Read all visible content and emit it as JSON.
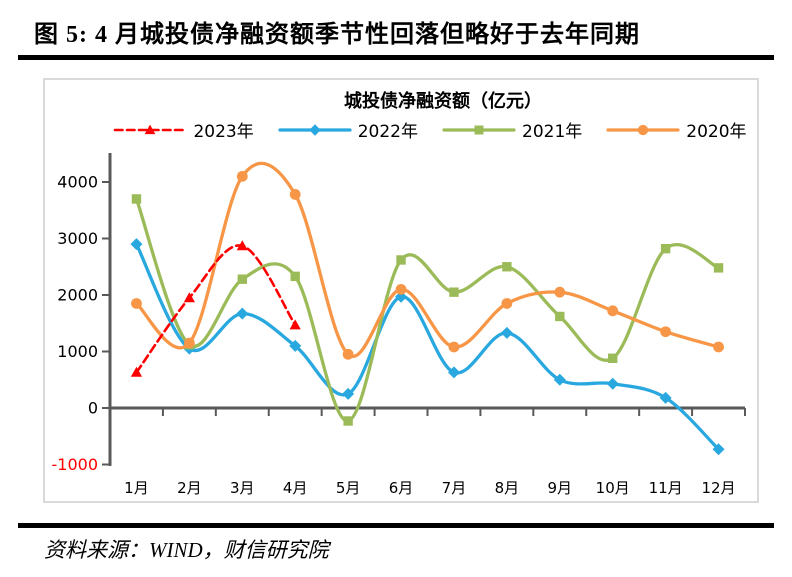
{
  "figure": {
    "header": "图 5: 4 月城投债净融资额季节性回落但略好于去年同期",
    "source": "资料来源：WIND，财信研究院"
  },
  "chart_data": {
    "type": "line",
    "title": "城投债净融资额（亿元）",
    "categories": [
      "1月",
      "2月",
      "3月",
      "4月",
      "5月",
      "6月",
      "7月",
      "8月",
      "9月",
      "10月",
      "11月",
      "12月"
    ],
    "series": [
      {
        "name": "2023年",
        "color": "#FF0000",
        "marker": "triangle",
        "line_style": "dashed",
        "values": [
          630,
          1950,
          2870,
          1470
        ]
      },
      {
        "name": "2022年",
        "color": "#29A8E0",
        "marker": "diamond",
        "line_style": "solid",
        "values": [
          2900,
          1050,
          1670,
          1100,
          250,
          1970,
          630,
          1330,
          500,
          430,
          180,
          -730
        ]
      },
      {
        "name": "2021年",
        "color": "#9BBB59",
        "marker": "square",
        "line_style": "solid",
        "values": [
          3700,
          1120,
          2280,
          2330,
          -230,
          2620,
          2050,
          2500,
          1620,
          880,
          2820,
          2480
        ]
      },
      {
        "name": "2020年",
        "color": "#F79646",
        "marker": "circle",
        "line_style": "solid",
        "values": [
          1850,
          1150,
          4100,
          3780,
          950,
          2100,
          1080,
          1850,
          2050,
          1720,
          1350,
          1080
        ]
      }
    ],
    "ylim": [
      -1000,
      4500
    ],
    "yticks": [
      4000,
      3000,
      2000,
      1000,
      0,
      -1000
    ],
    "ytick_negative_color": "#FF0000",
    "axis_color": "#595959",
    "legend_position": "top",
    "grid": false,
    "smooth": true
  }
}
